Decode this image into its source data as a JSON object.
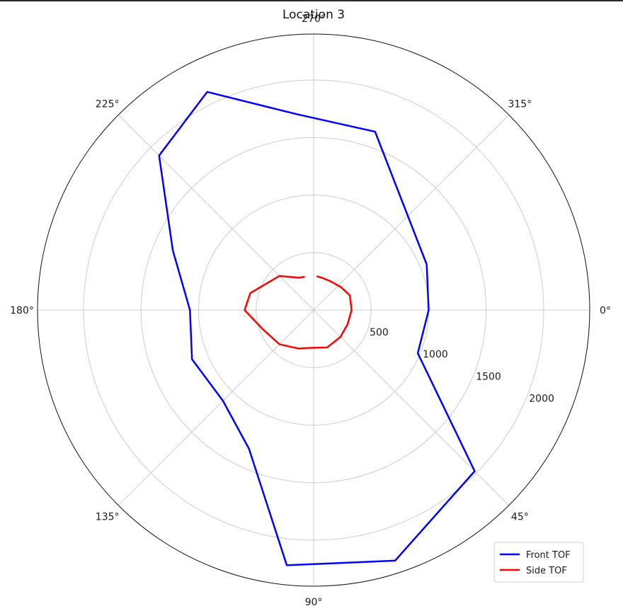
{
  "chart_data": {
    "type": "polar-line",
    "title": "Location 3",
    "theta_direction": "clockwise",
    "theta_zero": "E",
    "theta_tick_labels": [
      "0°",
      "45°",
      "90°",
      "135°",
      "180°",
      "225°",
      "270°",
      "315°"
    ],
    "r_lim": [
      0,
      2400
    ],
    "r_ticks": [
      500,
      1000,
      1500,
      2000
    ],
    "r_tick_labels": [
      "500",
      "1000",
      "1500",
      "2000"
    ],
    "r_label_angle_deg": 22.5,
    "grid": true,
    "legend": {
      "placement": "lower-right"
    },
    "series": [
      {
        "name": "Front TOF",
        "color": "#0000ff",
        "points": [
          {
            "theta": -22,
            "r": 1060
          },
          {
            "theta": 0,
            "r": 1000
          },
          {
            "theta": 22.5,
            "r": 980
          },
          {
            "theta": 45,
            "r": 1980
          },
          {
            "theta": 72,
            "r": 2290
          },
          {
            "theta": 96,
            "r": 2230
          },
          {
            "theta": 115,
            "r": 1330
          },
          {
            "theta": 135,
            "r": 1115
          },
          {
            "theta": 158,
            "r": 1140
          },
          {
            "theta": 180,
            "r": 1075
          },
          {
            "theta": 203,
            "r": 1330
          },
          {
            "theta": 225,
            "r": 1900
          },
          {
            "theta": 244,
            "r": 2110
          },
          {
            "theta": 265,
            "r": 1710
          },
          {
            "theta": 289,
            "r": 1640
          },
          {
            "theta": 338,
            "r": 1060
          }
        ]
      },
      {
        "name": "Side TOF",
        "color": "#ff0000",
        "points": [
          {
            "theta": 275,
            "r": 295
          },
          {
            "theta": 285,
            "r": 290
          },
          {
            "theta": 300,
            "r": 290
          },
          {
            "theta": 320,
            "r": 310
          },
          {
            "theta": 338,
            "r": 340
          },
          {
            "theta": 0,
            "r": 330
          },
          {
            "theta": 22.5,
            "r": 320
          },
          {
            "theta": 45,
            "r": 330
          },
          {
            "theta": 70,
            "r": 345
          },
          {
            "theta": 95,
            "r": 330
          },
          {
            "theta": 112,
            "r": 360
          },
          {
            "theta": 135,
            "r": 420
          },
          {
            "theta": 160,
            "r": 475
          },
          {
            "theta": 180,
            "r": 600
          },
          {
            "theta": 195,
            "r": 570
          },
          {
            "theta": 225,
            "r": 420
          },
          {
            "theta": 245,
            "r": 310
          },
          {
            "theta": 255,
            "r": 300
          }
        ]
      }
    ]
  }
}
